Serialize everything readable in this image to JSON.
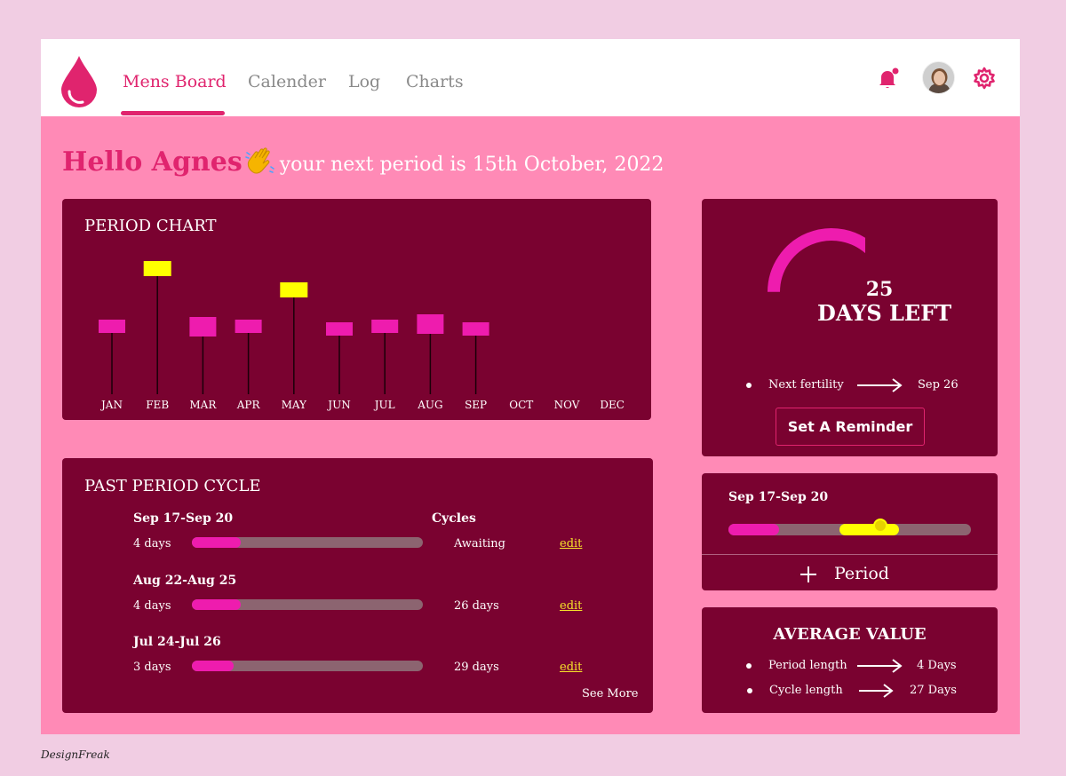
{
  "nav": {
    "items": [
      "Mens Board",
      "Calender",
      "Log",
      "Charts"
    ],
    "active": "Mens Board"
  },
  "icons": [
    "drop-logo-icon",
    "bell-icon",
    "avatar",
    "gear-icon"
  ],
  "greeting": {
    "hello": "Hello Agnes",
    "message": "your next period is 15th October, 2022"
  },
  "period_chart": {
    "title": "PERIOD CHART"
  },
  "chart_data": {
    "type": "bar",
    "title": "PERIOD CHART",
    "categories": [
      "JAN",
      "FEB",
      "MAR",
      "APR",
      "MAY",
      "JUN",
      "JUL",
      "AUG",
      "SEP",
      "OCT",
      "NOV",
      "DEC"
    ],
    "series": [
      {
        "values": [
          28,
          50,
          29,
          28,
          42,
          27,
          28,
          30,
          27,
          null,
          null,
          null
        ]
      }
    ],
    "highlight_colors": {
      "normal": "#ee1cae",
      "high": "#ffff00"
    },
    "ylim": [
      0,
      60
    ],
    "grid": false
  },
  "countdown": {
    "days": "25",
    "label": "DAYS LEFT",
    "progress": 0.72,
    "fertility_label": "Next fertility",
    "fertility_date": "Sep 26",
    "reminder_button": "Set A Reminder"
  },
  "past_cycle": {
    "title": "PAST PERIOD CYCLE",
    "cycles_header": "Cycles",
    "rows": [
      {
        "range": "Sep 17-Sep 20",
        "duration": "4 days",
        "cycle": "Awaiting",
        "edit": "edit",
        "fill": 0.21
      },
      {
        "range": "Aug 22-Aug 25",
        "duration": "4 days",
        "cycle": "26 days",
        "edit": "edit",
        "fill": 0.21
      },
      {
        "range": "Jul 24-Jul 26",
        "duration": "3 days",
        "cycle": "29 days",
        "edit": "edit",
        "fill": 0.18
      }
    ],
    "see_more": "See More"
  },
  "period_tracker": {
    "range": "Sep 17-Sep 20",
    "add_label": "Period"
  },
  "average": {
    "title": "AVERAGE VALUE",
    "rows": [
      {
        "label": "Period length",
        "value": "4 Days"
      },
      {
        "label": "Cycle length",
        "value": "27 Days"
      }
    ]
  },
  "footer": "DesignFreak",
  "colors": {
    "accent": "#e0246e",
    "card": "#7a0230",
    "background": "#ff8ab6",
    "magenta": "#ee1cae",
    "yellow": "#ffff00"
  }
}
